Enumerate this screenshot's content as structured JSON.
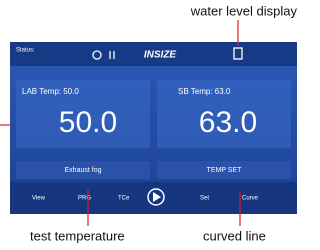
{
  "annotations": {
    "water_level": "water level display",
    "test_temperature": "test temperature",
    "curved_line": "curved line"
  },
  "screen": {
    "status": "Status:",
    "logo": "INSIZE",
    "lab_temp_label": "LAB Temp: 50.0",
    "sb_temp_label": "SB Temp: 63.0",
    "lab_temp": "50.0",
    "sb_temp": "63.0",
    "buttons": [
      "Exhaust fog",
      "TEMP SET"
    ],
    "toolbar": [
      "View",
      "PRG",
      "TCe",
      "Set",
      "Curve"
    ]
  }
}
